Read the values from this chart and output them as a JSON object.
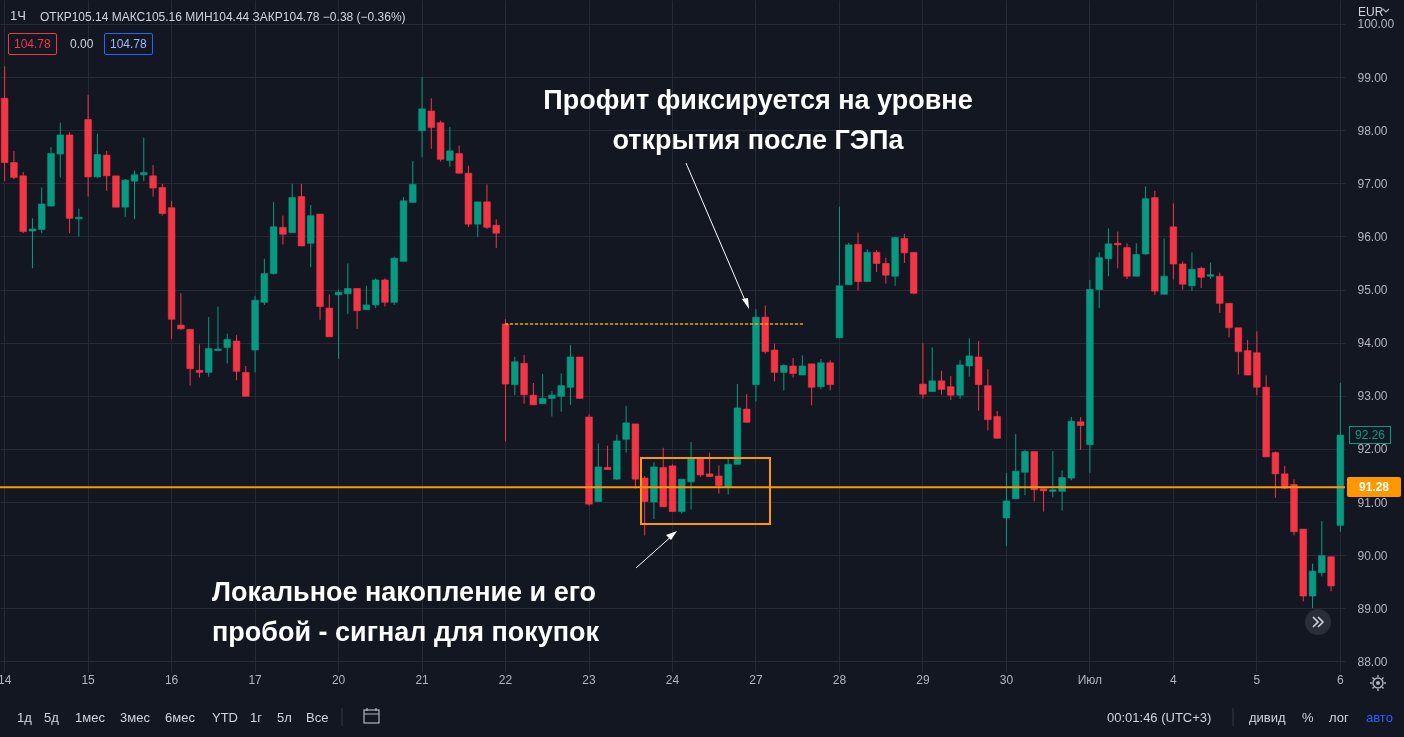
{
  "chart_data": {
    "type": "candlestick",
    "categories": [
      "14",
      null,
      null,
      null,
      null,
      null,
      null,
      null,
      null,
      "15",
      null,
      null,
      null,
      null,
      null,
      null,
      null,
      null,
      "16",
      null,
      null,
      null,
      null,
      null,
      null,
      null,
      null,
      "17",
      null,
      null,
      null,
      null,
      null,
      null,
      null,
      null,
      "20",
      null,
      null,
      null,
      null,
      null,
      null,
      null,
      null,
      "21",
      null,
      null,
      null,
      null,
      null,
      null,
      null,
      null,
      "22",
      null,
      null,
      null,
      null,
      null,
      null,
      null,
      null,
      "23",
      null,
      null,
      null,
      null,
      null,
      null,
      null,
      null,
      "24",
      null,
      null,
      null,
      null,
      null,
      null,
      null,
      null,
      "27",
      null,
      null,
      null,
      null,
      null,
      null,
      null,
      null,
      "28",
      null,
      null,
      null,
      null,
      null,
      null,
      null,
      null,
      "29",
      null,
      null,
      null,
      null,
      null,
      null,
      null,
      null,
      "30",
      null,
      null,
      null,
      null,
      null,
      null,
      null,
      null,
      "Июл",
      null,
      null,
      null,
      null,
      null,
      null,
      null,
      null,
      "4",
      null,
      null,
      null,
      null,
      null,
      null,
      null,
      null,
      "5",
      null,
      null,
      null,
      null,
      null,
      null,
      null,
      null,
      "6"
    ],
    "ohlc": [
      [
        98.6,
        99.2,
        97.04,
        97.39
      ],
      [
        97.39,
        97.61,
        97.08,
        97.11
      ],
      [
        97.14,
        97.21,
        96.06,
        96.09
      ],
      [
        96.1,
        96.34,
        95.4,
        96.14
      ],
      [
        96.13,
        96.92,
        96.06,
        96.61
      ],
      [
        96.57,
        97.68,
        96.57,
        97.56
      ],
      [
        97.55,
        98.14,
        97.11,
        97.91
      ],
      [
        97.91,
        97.96,
        96.06,
        96.34
      ],
      [
        96.33,
        96.52,
        96.0,
        96.36
      ],
      [
        98.2,
        98.66,
        96.75,
        97.12
      ],
      [
        97.12,
        97.93,
        97.1,
        97.54
      ],
      [
        97.53,
        97.61,
        96.86,
        97.14
      ],
      [
        97.14,
        97.14,
        96.55,
        96.55
      ],
      [
        96.55,
        97.08,
        96.37,
        97.06
      ],
      [
        97.04,
        97.24,
        96.32,
        97.16
      ],
      [
        97.16,
        97.86,
        97.04,
        97.2
      ],
      [
        97.14,
        97.34,
        96.75,
        96.91
      ],
      [
        96.92,
        96.99,
        96.39,
        96.43
      ],
      [
        96.54,
        96.67,
        94.07,
        94.44
      ],
      [
        94.33,
        94.93,
        94.24,
        94.26
      ],
      [
        94.25,
        94.25,
        93.19,
        93.51
      ],
      [
        93.48,
        93.97,
        93.34,
        93.44
      ],
      [
        93.44,
        94.48,
        93.36,
        93.89
      ],
      [
        93.85,
        94.68,
        93.84,
        93.88
      ],
      [
        93.91,
        94.17,
        93.61,
        94.06
      ],
      [
        94.03,
        94.14,
        93.29,
        93.46
      ],
      [
        93.44,
        93.56,
        92.99,
        92.99
      ],
      [
        93.86,
        94.88,
        93.44,
        94.8
      ],
      [
        94.76,
        95.58,
        94.71,
        95.3
      ],
      [
        95.3,
        96.65,
        95.28,
        96.18
      ],
      [
        96.17,
        96.39,
        95.85,
        96.04
      ],
      [
        96.07,
        96.99,
        96.07,
        96.73
      ],
      [
        96.75,
        96.99,
        95.82,
        95.82
      ],
      [
        95.87,
        96.59,
        95.42,
        96.39
      ],
      [
        96.42,
        96.42,
        94.43,
        94.68
      ],
      [
        94.65,
        94.91,
        94.11,
        94.11
      ],
      [
        94.9,
        95.0,
        93.69,
        94.95
      ],
      [
        94.92,
        95.49,
        94.54,
        95.02
      ],
      [
        95.02,
        95.02,
        94.26,
        94.6
      ],
      [
        94.62,
        95.07,
        94.62,
        94.71
      ],
      [
        94.71,
        95.21,
        94.65,
        95.18
      ],
      [
        95.18,
        95.21,
        94.68,
        94.76
      ],
      [
        94.76,
        95.62,
        94.71,
        95.59
      ],
      [
        95.53,
        96.74,
        95.53,
        96.67
      ],
      [
        96.64,
        97.42,
        96.64,
        96.98
      ],
      [
        97.99,
        99.0,
        97.49,
        98.4
      ],
      [
        98.36,
        98.6,
        97.65,
        98.05
      ],
      [
        98.14,
        98.18,
        97.41,
        97.45
      ],
      [
        97.43,
        98.06,
        97.31,
        97.61
      ],
      [
        97.56,
        97.71,
        97.18,
        97.19
      ],
      [
        97.19,
        97.33,
        96.18,
        96.23
      ],
      [
        96.23,
        96.65,
        95.99,
        96.65
      ],
      [
        96.65,
        96.98,
        96.14,
        96.17
      ],
      [
        96.21,
        96.32,
        95.78,
        96.06
      ],
      [
        94.35,
        94.44,
        92.14,
        93.22
      ],
      [
        93.21,
        93.73,
        93.01,
        93.64
      ],
      [
        93.61,
        93.77,
        92.85,
        93.02
      ],
      [
        93.01,
        93.24,
        92.83,
        92.83
      ],
      [
        92.85,
        93.41,
        92.85,
        92.95
      ],
      [
        92.95,
        93.09,
        92.61,
        93.01
      ],
      [
        92.99,
        93.42,
        92.7,
        93.19
      ],
      [
        93.16,
        93.96,
        92.83,
        93.73
      ],
      [
        93.73,
        93.73,
        92.95,
        92.95
      ],
      [
        92.6,
        92.65,
        90.93,
        90.96
      ],
      [
        91.01,
        92.1,
        91.01,
        91.66
      ],
      [
        91.65,
        92.06,
        91.61,
        91.61
      ],
      [
        91.43,
        92.27,
        91.42,
        92.15
      ],
      [
        92.18,
        92.81,
        91.93,
        92.49
      ],
      [
        92.47,
        92.47,
        91.25,
        91.43
      ],
      [
        91.45,
        91.49,
        90.37,
        91.01
      ],
      [
        91.0,
        91.75,
        90.68,
        91.66
      ],
      [
        91.65,
        92.02,
        90.91,
        90.91
      ],
      [
        91.68,
        91.71,
        90.82,
        90.82
      ],
      [
        90.82,
        91.43,
        90.78,
        91.43
      ],
      [
        91.38,
        92.13,
        90.86,
        91.83
      ],
      [
        91.83,
        91.83,
        91.47,
        91.51
      ],
      [
        91.53,
        91.93,
        91.47,
        91.48
      ],
      [
        91.49,
        91.69,
        91.16,
        91.31
      ],
      [
        91.29,
        91.83,
        91.14,
        91.71
      ],
      [
        91.71,
        93.22,
        91.71,
        92.77
      ],
      [
        92.75,
        93.03,
        92.5,
        92.5
      ],
      [
        93.21,
        94.63,
        92.89,
        94.48
      ],
      [
        94.48,
        94.7,
        93.79,
        93.83
      ],
      [
        93.86,
        93.98,
        93.27,
        93.44
      ],
      [
        93.44,
        93.59,
        93.1,
        93.57
      ],
      [
        93.56,
        93.71,
        93.34,
        93.42
      ],
      [
        93.39,
        93.76,
        93.39,
        93.56
      ],
      [
        93.6,
        93.6,
        92.82,
        93.16
      ],
      [
        93.17,
        93.69,
        93.12,
        93.62
      ],
      [
        93.62,
        93.67,
        93.1,
        93.21
      ],
      [
        94.09,
        96.56,
        94.09,
        95.07
      ],
      [
        95.09,
        95.88,
        95.09,
        95.84
      ],
      [
        95.85,
        96.07,
        94.98,
        95.15
      ],
      [
        95.15,
        95.76,
        95.15,
        95.7
      ],
      [
        95.7,
        95.74,
        95.33,
        95.49
      ],
      [
        95.49,
        95.6,
        95.11,
        95.27
      ],
      [
        95.25,
        95.98,
        95.07,
        95.98
      ],
      [
        95.96,
        96.05,
        95.5,
        95.69
      ],
      [
        95.7,
        95.7,
        94.91,
        94.93
      ],
      [
        93.22,
        93.99,
        92.95,
        93.03
      ],
      [
        93.08,
        93.91,
        93.08,
        93.28
      ],
      [
        93.28,
        93.47,
        93.02,
        93.12
      ],
      [
        93.17,
        93.37,
        92.92,
        93.01
      ],
      [
        93.01,
        93.67,
        92.94,
        93.58
      ],
      [
        93.56,
        94.08,
        93.36,
        93.75
      ],
      [
        93.73,
        94.03,
        92.72,
        93.21
      ],
      [
        93.19,
        93.5,
        92.35,
        92.55
      ],
      [
        92.61,
        92.71,
        92.2,
        92.2
      ],
      [
        90.7,
        91.55,
        90.17,
        91.02
      ],
      [
        91.06,
        92.28,
        91.06,
        91.58
      ],
      [
        91.56,
        91.98,
        91.13,
        91.95
      ],
      [
        91.95,
        91.95,
        91.01,
        91.23
      ],
      [
        91.25,
        91.25,
        90.82,
        91.21
      ],
      [
        91.2,
        91.96,
        91.09,
        91.23
      ],
      [
        91.2,
        91.59,
        90.84,
        91.46
      ],
      [
        91.45,
        92.6,
        91.41,
        92.52
      ],
      [
        92.51,
        92.6,
        91.98,
        92.44
      ],
      [
        92.08,
        95.18,
        91.55,
        95.0
      ],
      [
        95.0,
        95.7,
        94.65,
        95.6
      ],
      [
        95.58,
        96.15,
        95.25,
        95.86
      ],
      [
        95.87,
        96.09,
        95.4,
        95.84
      ],
      [
        95.79,
        95.87,
        95.2,
        95.25
      ],
      [
        95.25,
        95.87,
        95.25,
        95.66
      ],
      [
        95.67,
        96.94,
        95.65,
        96.71
      ],
      [
        96.73,
        96.86,
        94.9,
        94.97
      ],
      [
        94.91,
        95.96,
        94.91,
        95.25
      ],
      [
        96.18,
        96.62,
        95.19,
        95.48
      ],
      [
        95.48,
        95.53,
        95.0,
        95.1
      ],
      [
        95.07,
        95.7,
        94.97,
        95.38
      ],
      [
        95.4,
        95.43,
        95.03,
        95.23
      ],
      [
        95.25,
        95.51,
        95.2,
        95.28
      ],
      [
        95.25,
        95.32,
        94.56,
        94.74
      ],
      [
        94.74,
        94.74,
        94.1,
        94.28
      ],
      [
        94.28,
        94.28,
        93.4,
        93.83
      ],
      [
        93.85,
        94.05,
        93.39,
        93.39
      ],
      [
        93.81,
        94.21,
        93.01,
        93.16
      ],
      [
        93.16,
        93.38,
        91.85,
        91.85
      ],
      [
        91.93,
        91.95,
        91.08,
        91.53
      ],
      [
        91.53,
        91.68,
        91.24,
        91.26
      ],
      [
        91.33,
        91.43,
        90.37,
        90.44
      ],
      [
        90.49,
        90.49,
        89.13,
        89.23
      ],
      [
        89.23,
        89.84,
        89.0,
        89.7
      ],
      [
        89.67,
        90.64,
        89.6,
        89.99
      ],
      [
        89.97,
        89.97,
        89.32,
        89.42
      ],
      [
        90.56,
        93.24,
        90.44,
        92.26
      ]
    ],
    "colors": [
      "#f23645",
      "#f23645",
      "#f23645",
      "#089981",
      "#089981",
      "#089981",
      "#089981",
      "#f23645",
      "#089981",
      "#f23645",
      "#089981",
      "#f23645",
      "#f23645",
      "#089981",
      "#089981",
      "#089981",
      "#f23645",
      "#f23645",
      "#f23645",
      "#f23645",
      "#f23645",
      "#f23645",
      "#089981",
      "#089981",
      "#089981",
      "#f23645",
      "#f23645",
      "#089981",
      "#089981",
      "#089981",
      "#f23645",
      "#089981",
      "#f23645",
      "#089981",
      "#f23645",
      "#f23645",
      "#089981",
      "#089981",
      "#f23645",
      "#089981",
      "#089981",
      "#f23645",
      "#089981",
      "#089981",
      "#089981",
      "#089981",
      "#f23645",
      "#f23645",
      "#089981",
      "#f23645",
      "#f23645",
      "#089981",
      "#f23645",
      "#f23645",
      "#f23645",
      "#089981",
      "#f23645",
      "#f23645",
      "#089981",
      "#089981",
      "#089981",
      "#089981",
      "#f23645",
      "#f23645",
      "#089981",
      "#f23645",
      "#089981",
      "#089981",
      "#f23645",
      "#f23645",
      "#089981",
      "#f23645",
      "#f23645",
      "#089981",
      "#089981",
      "#f23645",
      "#f23645",
      "#f23645",
      "#089981",
      "#089981",
      "#f23645",
      "#089981",
      "#f23645",
      "#f23645",
      "#089981",
      "#f23645",
      "#089981",
      "#f23645",
      "#089981",
      "#f23645",
      "#089981",
      "#089981",
      "#f23645",
      "#089981",
      "#f23645",
      "#f23645",
      "#089981",
      "#f23645",
      "#f23645",
      "#f23645",
      "#089981",
      "#f23645",
      "#f23645",
      "#089981",
      "#089981",
      "#f23645",
      "#f23645",
      "#f23645",
      "#089981",
      "#089981",
      "#089981",
      "#f23645",
      "#f23645",
      "#089981",
      "#089981",
      "#089981",
      "#f23645",
      "#089981",
      "#089981",
      "#089981",
      "#f23645",
      "#f23645",
      "#089981",
      "#089981",
      "#f23645",
      "#089981",
      "#f23645",
      "#f23645",
      "#089981",
      "#f23645",
      "#089981",
      "#f23645",
      "#f23645",
      "#f23645",
      "#f23645",
      "#f23645",
      "#f23645",
      "#f23645",
      "#f23645",
      "#f23645",
      "#f23645",
      "#089981",
      "#089981",
      "#f23645",
      "#089981"
    ],
    "series": [
      {
        "type": "line",
        "color": "#f5a623",
        "line_style": "dotted",
        "values": [
          null,
          null,
          null,
          null,
          null,
          null,
          null,
          null,
          null,
          null,
          null,
          null,
          null,
          null,
          null,
          null,
          null,
          null,
          null,
          null,
          null,
          null,
          null,
          null,
          null,
          null,
          null,
          null,
          null,
          null,
          null,
          null,
          null,
          null,
          null,
          null,
          null,
          null,
          null,
          null,
          null,
          null,
          null,
          null,
          null,
          null,
          null,
          null,
          null,
          null,
          null,
          null,
          null,
          null,
          94.35,
          94.35,
          94.35,
          94.35,
          94.35,
          94.35,
          94.35,
          94.35,
          94.35,
          94.35,
          94.35,
          94.35,
          94.35,
          94.35,
          94.35,
          94.35,
          94.35,
          94.35,
          94.35,
          94.35,
          94.35,
          94.35,
          94.35,
          94.35,
          94.35,
          94.35,
          94.35,
          94.35,
          94.35,
          94.35,
          94.35,
          94.35,
          94.35,
          null,
          null,
          null,
          null,
          null,
          null,
          null,
          null,
          null,
          null,
          null,
          null,
          null,
          null,
          null,
          null,
          null,
          null,
          null,
          null,
          null,
          null,
          null,
          null,
          null,
          null,
          null,
          null,
          null,
          null,
          null,
          null,
          null,
          null,
          null,
          null,
          null,
          null,
          null,
          null,
          null,
          null,
          null,
          null,
          null,
          null,
          null,
          null,
          null,
          null,
          null,
          null,
          null,
          null,
          null,
          null,
          null,
          null
        ]
      }
    ],
    "ylim": [
      87.8,
      100.45
    ],
    "yticks": [
      {
        "value": 88,
        "label": "88.00"
      },
      {
        "value": 89,
        "label": "89.00"
      },
      {
        "value": 90,
        "label": "90.00"
      },
      {
        "value": 91,
        "label": "91.00"
      },
      {
        "value": 92,
        "label": "92.00"
      },
      {
        "value": 93,
        "label": "93.00"
      },
      {
        "value": 94,
        "label": "94.00"
      },
      {
        "value": 95,
        "label": "95.00"
      },
      {
        "value": 96,
        "label": "96.00"
      },
      {
        "value": 97,
        "label": "97.00"
      },
      {
        "value": 98,
        "label": "98.00"
      },
      {
        "value": 99,
        "label": "99.00"
      },
      {
        "value": 100,
        "label": "100.00"
      }
    ],
    "grid": true,
    "ref_lines": [
      {
        "axis": "y",
        "value": 91.28,
        "label": "91.28",
        "color": "#ff9800"
      }
    ],
    "annotations": [
      "Профит фиксируется на уровне открытия после ГЭПа",
      "Локальное накопление и его пробой - сигнал для покупок",
      "1Ч",
      "ОТКР105.14 МАКС105.16 МИН104.44 ЗАКР104.78 −0.38 (−0.36%)",
      "104.78",
      "0.00",
      "104.78",
      "EUR",
      "92.26",
      "1д",
      "5д",
      "1мес",
      "3мес",
      "6мес",
      "YTD",
      "1г",
      "5л",
      "Все",
      "00:01:46 (UTC+3)",
      "дивид",
      "%",
      "лог",
      "авто"
    ]
  }
}
